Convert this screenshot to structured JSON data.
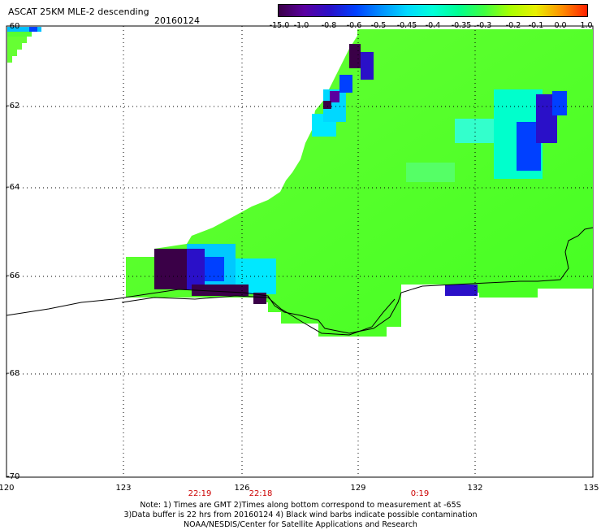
{
  "header": {
    "title": "ASCAT 25KM MLE-2 descending",
    "date": "20160124"
  },
  "colorbar": {
    "labels": [
      "-15.0",
      "-1.0",
      "-0.8",
      "-0.6",
      "-0.5",
      "-0.45",
      "-0.4",
      "-0.35",
      "-0.3",
      "-0.2",
      "-0.1",
      "0.0",
      "1.0"
    ],
    "colors": [
      "#3a0047",
      "#5a00a0",
      "#2a10c8",
      "#0040ff",
      "#0090ff",
      "#00d8ff",
      "#00ffd8",
      "#00ff90",
      "#40ff40",
      "#a8ff00",
      "#e8f000",
      "#ff9000",
      "#ff2000"
    ]
  },
  "axes": {
    "lat_labels": [
      "-60",
      "-62",
      "-64",
      "-66",
      "-68",
      "-70"
    ],
    "lon_labels": [
      "120",
      "123",
      "126",
      "129",
      "132",
      "135"
    ]
  },
  "time_labels": [
    "22:19",
    "22:18",
    "0:19"
  ],
  "notes": [
    "Note: 1) Times are GMT 2)Times along bottom correspond to measurement at -65S",
    "3)Data buffer is 22 hrs from 20160124 4) Black wind barbs indicate possible contamination",
    "NOAA/NESDIS/Center for Satellite Applications and Research"
  ]
}
